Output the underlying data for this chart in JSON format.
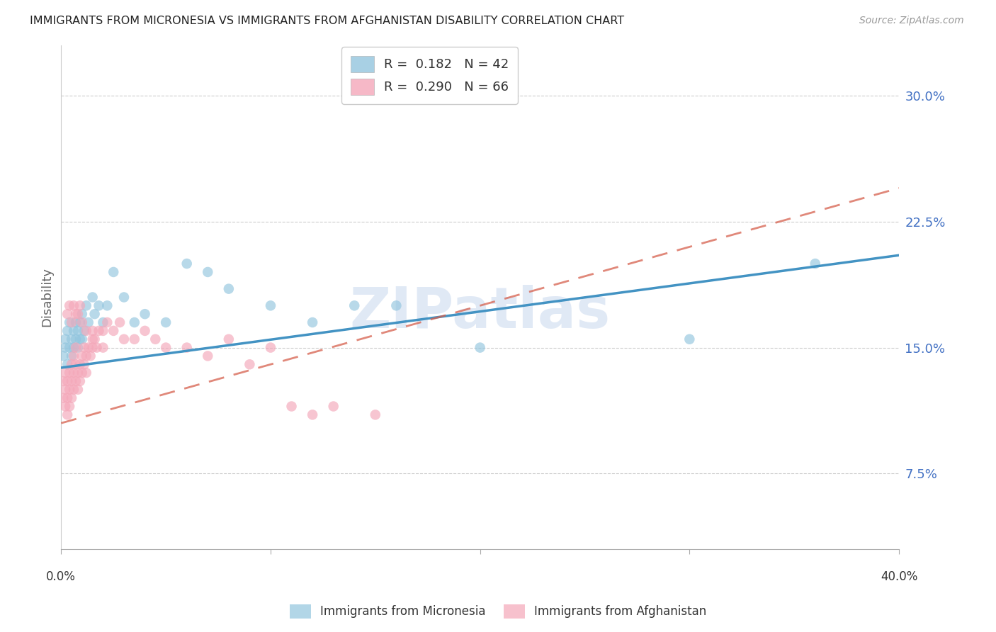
{
  "title": "IMMIGRANTS FROM MICRONESIA VS IMMIGRANTS FROM AFGHANISTAN DISABILITY CORRELATION CHART",
  "source": "Source: ZipAtlas.com",
  "ylabel": "Disability",
  "ytick_labels": [
    "7.5%",
    "15.0%",
    "22.5%",
    "30.0%"
  ],
  "ytick_values": [
    0.075,
    0.15,
    0.225,
    0.3
  ],
  "xlim": [
    0.0,
    0.4
  ],
  "ylim": [
    0.03,
    0.33
  ],
  "color_blue": "#92c5de",
  "color_pink": "#f4a7b9",
  "trendline_blue": "#4393c3",
  "trendline_pink": "#d6604d",
  "watermark_text": "ZIPatlas",
  "legend_label_blue": "Immigrants from Micronesia",
  "legend_label_pink": "Immigrants from Afghanistan",
  "R_blue": 0.182,
  "N_blue": 42,
  "R_pink": 0.29,
  "N_pink": 66,
  "mic_x": [
    0.001,
    0.002,
    0.002,
    0.003,
    0.003,
    0.004,
    0.004,
    0.005,
    0.005,
    0.006,
    0.006,
    0.007,
    0.007,
    0.008,
    0.008,
    0.009,
    0.009,
    0.01,
    0.01,
    0.011,
    0.012,
    0.013,
    0.015,
    0.016,
    0.018,
    0.02,
    0.022,
    0.025,
    0.03,
    0.035,
    0.04,
    0.05,
    0.06,
    0.07,
    0.08,
    0.1,
    0.12,
    0.14,
    0.16,
    0.2,
    0.3,
    0.36
  ],
  "mic_y": [
    0.145,
    0.15,
    0.155,
    0.14,
    0.16,
    0.15,
    0.165,
    0.145,
    0.155,
    0.15,
    0.16,
    0.155,
    0.165,
    0.15,
    0.16,
    0.155,
    0.165,
    0.155,
    0.17,
    0.16,
    0.175,
    0.165,
    0.18,
    0.17,
    0.175,
    0.165,
    0.175,
    0.195,
    0.18,
    0.165,
    0.17,
    0.165,
    0.2,
    0.195,
    0.185,
    0.175,
    0.165,
    0.175,
    0.175,
    0.15,
    0.155,
    0.2
  ],
  "afg_x": [
    0.001,
    0.001,
    0.002,
    0.002,
    0.002,
    0.003,
    0.003,
    0.003,
    0.004,
    0.004,
    0.004,
    0.005,
    0.005,
    0.005,
    0.006,
    0.006,
    0.006,
    0.007,
    0.007,
    0.007,
    0.008,
    0.008,
    0.009,
    0.009,
    0.01,
    0.01,
    0.011,
    0.011,
    0.012,
    0.012,
    0.013,
    0.014,
    0.015,
    0.015,
    0.016,
    0.017,
    0.018,
    0.02,
    0.022,
    0.025,
    0.028,
    0.03,
    0.035,
    0.04,
    0.045,
    0.05,
    0.06,
    0.07,
    0.08,
    0.09,
    0.1,
    0.11,
    0.12,
    0.13,
    0.15,
    0.003,
    0.004,
    0.005,
    0.006,
    0.007,
    0.008,
    0.009,
    0.01,
    0.012,
    0.015,
    0.02
  ],
  "afg_y": [
    0.12,
    0.13,
    0.115,
    0.125,
    0.135,
    0.11,
    0.12,
    0.13,
    0.115,
    0.125,
    0.135,
    0.12,
    0.13,
    0.14,
    0.125,
    0.135,
    0.145,
    0.13,
    0.14,
    0.15,
    0.125,
    0.135,
    0.13,
    0.14,
    0.135,
    0.145,
    0.14,
    0.15,
    0.135,
    0.145,
    0.15,
    0.145,
    0.15,
    0.16,
    0.155,
    0.15,
    0.16,
    0.16,
    0.165,
    0.16,
    0.165,
    0.155,
    0.155,
    0.16,
    0.155,
    0.15,
    0.15,
    0.145,
    0.155,
    0.14,
    0.15,
    0.115,
    0.11,
    0.115,
    0.11,
    0.17,
    0.175,
    0.165,
    0.175,
    0.17,
    0.17,
    0.175,
    0.165,
    0.16,
    0.155,
    0.15
  ]
}
